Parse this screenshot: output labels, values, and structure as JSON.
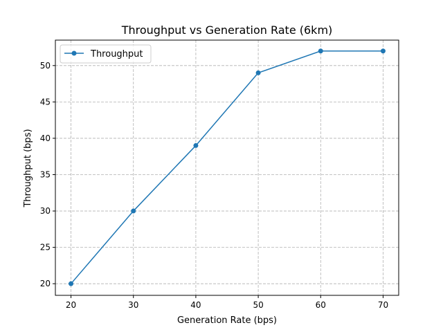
{
  "chart_data": {
    "type": "line",
    "title": "Throughput vs Generation Rate (6km)",
    "xlabel": "Generation Rate (bps)",
    "ylabel": "Throughput (bps)",
    "x": [
      20,
      30,
      40,
      50,
      60,
      70
    ],
    "series": [
      {
        "name": "Throughput",
        "values": [
          20,
          30,
          39,
          49,
          52,
          52
        ],
        "color": "#1f77b4",
        "marker": "circle"
      }
    ],
    "xticks": [
      20,
      30,
      40,
      50,
      60,
      70
    ],
    "yticks": [
      20,
      25,
      30,
      35,
      40,
      45,
      50
    ],
    "xlim": [
      17.5,
      72.5
    ],
    "ylim": [
      18.4,
      53.5
    ],
    "grid": true,
    "legend": "top-left"
  }
}
